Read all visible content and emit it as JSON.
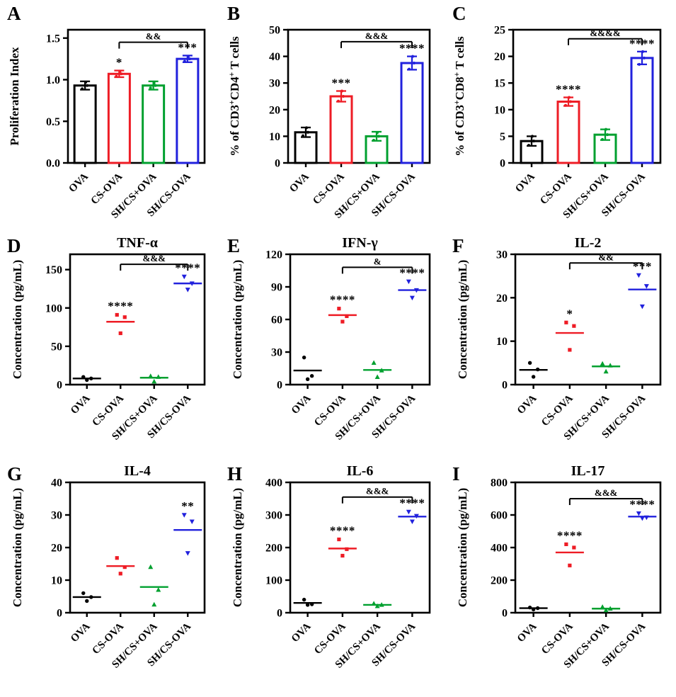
{
  "figure": {
    "background": "#ffffff",
    "frame_color": "#000000",
    "description_groups": {
      "categories": [
        "OVA",
        "CS-OVA",
        "SH/CS+OVA",
        "SH/CS-OVA"
      ],
      "colors": [
        "#000000",
        "#ee1c25",
        "#00a02f",
        "#2121dd"
      ],
      "markers": [
        "circle",
        "square",
        "triangle-up",
        "triangle-down"
      ]
    }
  },
  "chart_data": [
    {
      "letter": "A",
      "type": "bar",
      "title": "",
      "ylabel": "Proliferation Index",
      "ylim": [
        0,
        1.6
      ],
      "yticks": [
        0,
        0.5,
        1.0,
        1.5
      ],
      "ytick_labels": [
        "0.0",
        "0.5",
        "1.0",
        "1.5"
      ],
      "categories": [
        "OVA",
        "CS-OVA",
        "SH/CS+OVA",
        "SH/CS-OVA"
      ],
      "means": [
        0.93,
        1.07,
        0.93,
        1.25
      ],
      "errors": [
        0.05,
        0.04,
        0.05,
        0.04
      ],
      "points": [
        [
          0.89,
          0.93,
          0.97
        ],
        [
          1.04,
          1.07,
          1.1
        ],
        [
          0.9,
          0.93,
          0.96
        ],
        [
          1.22,
          1.25,
          1.28
        ]
      ],
      "sig": [
        "",
        "*",
        "",
        "***"
      ],
      "bracket": {
        "from": 1,
        "to": 3,
        "label": "&&",
        "y": 1.45
      }
    },
    {
      "letter": "B",
      "type": "bar",
      "title": "",
      "ylabel": "% of CD3^+CD4^+ T cells",
      "ylim": [
        0,
        50
      ],
      "yticks": [
        0,
        10,
        20,
        30,
        40,
        50
      ],
      "ytick_labels": [
        "0",
        "10",
        "20",
        "30",
        "40",
        "50"
      ],
      "categories": [
        "OVA",
        "CS-OVA",
        "SH/CS+OVA",
        "SH/CS-OVA"
      ],
      "means": [
        11.5,
        25,
        10,
        37.5
      ],
      "errors": [
        1.8,
        2.0,
        1.7,
        2.5
      ],
      "points": [
        [
          10.2,
          11.5,
          13.2
        ],
        [
          23.2,
          25,
          27
        ],
        [
          8.5,
          10,
          11.4
        ],
        [
          35.2,
          37.5,
          40
        ]
      ],
      "sig": [
        "",
        "***",
        "",
        "****"
      ],
      "bracket": {
        "from": 1,
        "to": 3,
        "label": "&&&",
        "y": 45.5
      }
    },
    {
      "letter": "C",
      "type": "bar",
      "title": "",
      "ylabel": "% of CD3^+CD8^+ T cells",
      "ylim": [
        0,
        25
      ],
      "yticks": [
        0,
        5,
        10,
        15,
        20,
        25
      ],
      "ytick_labels": [
        "0",
        "5",
        "10",
        "15",
        "20",
        "25"
      ],
      "categories": [
        "OVA",
        "CS-OVA",
        "SH/CS+OVA",
        "SH/CS-OVA"
      ],
      "means": [
        4.1,
        11.5,
        5.3,
        19.7
      ],
      "errors": [
        0.9,
        0.8,
        1.0,
        1.2
      ],
      "points": [
        [
          3.3,
          4.1,
          5.0
        ],
        [
          10.8,
          11.5,
          12.3
        ],
        [
          4.4,
          5.3,
          6.3
        ],
        [
          18.5,
          19.7,
          20.9
        ]
      ],
      "sig": [
        "",
        "****",
        "",
        "****"
      ],
      "bracket": {
        "from": 1,
        "to": 3,
        "label": "&&&&",
        "y": 23.3
      }
    },
    {
      "letter": "D",
      "type": "scatter",
      "title": "TNF-α",
      "ylabel": "Concentration (pg/mL)",
      "ylim": [
        0,
        170
      ],
      "yticks": [
        0,
        50,
        100,
        150
      ],
      "ytick_labels": [
        "0",
        "50",
        "100",
        "150"
      ],
      "categories": [
        "OVA",
        "CS-OVA",
        "SH/CS+OVA",
        "SH/CS-OVA"
      ],
      "means": [
        8,
        82,
        9,
        132
      ],
      "points": [
        [
          6,
          8,
          10
        ],
        [
          67,
          88,
          91
        ],
        [
          4,
          10,
          11
        ],
        [
          124,
          132,
          141
        ]
      ],
      "sig": [
        "",
        "****",
        "",
        "****"
      ],
      "bracket": {
        "from": 1,
        "to": 3,
        "label": "&&&",
        "y": 157
      }
    },
    {
      "letter": "E",
      "type": "scatter",
      "title": "IFN-γ",
      "ylabel": "Concentration (pg/mL)",
      "ylim": [
        0,
        120
      ],
      "yticks": [
        0,
        30,
        60,
        90,
        120
      ],
      "ytick_labels": [
        "0",
        "30",
        "60",
        "90",
        "120"
      ],
      "categories": [
        "OVA",
        "CS-OVA",
        "SH/CS+OVA",
        "SH/CS-OVA"
      ],
      "means": [
        13,
        64,
        13.5,
        87
      ],
      "points": [
        [
          5,
          8,
          25
        ],
        [
          58,
          63,
          70
        ],
        [
          7,
          13,
          20
        ],
        [
          80,
          87,
          95
        ]
      ],
      "sig": [
        "",
        "****",
        "",
        "****"
      ],
      "bracket": {
        "from": 1,
        "to": 3,
        "label": "&",
        "y": 108
      }
    },
    {
      "letter": "F",
      "type": "scatter",
      "title": "IL-2",
      "ylabel": "Concentration (pg/mL)",
      "ylim": [
        0,
        30
      ],
      "yticks": [
        0,
        10,
        20,
        30
      ],
      "ytick_labels": [
        "0",
        "10",
        "20",
        "30"
      ],
      "categories": [
        "OVA",
        "CS-OVA",
        "SH/CS+OVA",
        "SH/CS-OVA"
      ],
      "means": [
        3.4,
        11.9,
        4.2,
        21.9
      ],
      "points": [
        [
          1.8,
          3.5,
          5
        ],
        [
          8,
          13.5,
          14.3
        ],
        [
          3,
          4.4,
          4.8
        ],
        [
          18,
          22.7,
          25.2
        ]
      ],
      "sig": [
        "",
        "*",
        "",
        "***"
      ],
      "bracket": {
        "from": 1,
        "to": 3,
        "label": "&&",
        "y": 28
      }
    },
    {
      "letter": "G",
      "type": "scatter",
      "title": "IL-4",
      "ylabel": "Concentration (pg/mL)",
      "ylim": [
        0,
        40
      ],
      "yticks": [
        0,
        10,
        20,
        30,
        40
      ],
      "ytick_labels": [
        "0",
        "10",
        "20",
        "30",
        "40"
      ],
      "categories": [
        "OVA",
        "CS-OVA",
        "SH/CS+OVA",
        "SH/CS-OVA"
      ],
      "means": [
        4.8,
        14.3,
        7.9,
        25.4
      ],
      "points": [
        [
          3.6,
          4.8,
          6
        ],
        [
          12,
          14,
          16.8
        ],
        [
          2.5,
          7,
          14
        ],
        [
          18.3,
          28,
          30
        ]
      ],
      "sig": [
        "",
        "",
        "",
        "**"
      ],
      "bracket": null
    },
    {
      "letter": "H",
      "type": "scatter",
      "title": "IL-6",
      "ylabel": "Concentration (pg/mL)",
      "ylim": [
        0,
        400
      ],
      "yticks": [
        0,
        100,
        200,
        300,
        400
      ],
      "ytick_labels": [
        "0",
        "100",
        "200",
        "300",
        "400"
      ],
      "categories": [
        "OVA",
        "CS-OVA",
        "SH/CS+OVA",
        "SH/CS-OVA"
      ],
      "means": [
        30,
        197,
        24,
        295
      ],
      "points": [
        [
          24,
          26,
          40
        ],
        [
          175,
          195,
          225
        ],
        [
          20,
          24,
          28
        ],
        [
          280,
          297,
          310
        ]
      ],
      "sig": [
        "",
        "****",
        "",
        "****"
      ],
      "bracket": {
        "from": 1,
        "to": 3,
        "label": "&&&",
        "y": 355
      }
    },
    {
      "letter": "I",
      "type": "scatter",
      "title": "IL-17",
      "ylabel": "Concentration (pg/mL)",
      "ylim": [
        0,
        800
      ],
      "yticks": [
        0,
        200,
        400,
        600,
        800
      ],
      "ytick_labels": [
        "0",
        "200",
        "400",
        "600",
        "800"
      ],
      "categories": [
        "OVA",
        "CS-OVA",
        "SH/CS+OVA",
        "SH/CS-OVA"
      ],
      "means": [
        28,
        370,
        25,
        590
      ],
      "points": [
        [
          20,
          28,
          32
        ],
        [
          290,
          400,
          420
        ],
        [
          15,
          25,
          35
        ],
        [
          580,
          585,
          610
        ]
      ],
      "sig": [
        "",
        "****",
        "",
        "****"
      ],
      "bracket": {
        "from": 1,
        "to": 3,
        "label": "&&&",
        "y": 700
      }
    }
  ]
}
